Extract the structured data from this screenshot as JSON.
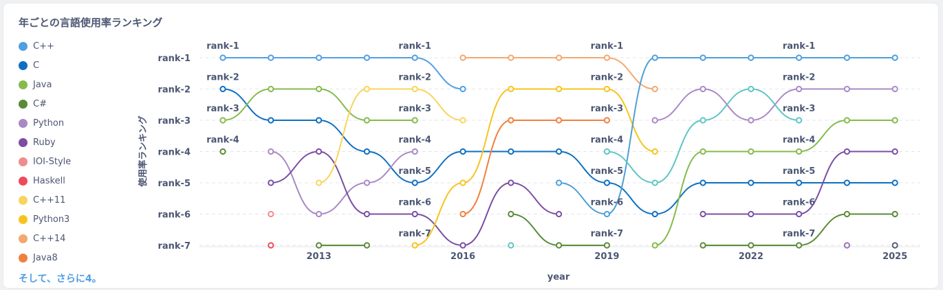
{
  "title": "年ごとの言語使用率ランキング",
  "more_label": "そして、さらに4。",
  "chart_data": {
    "type": "line",
    "title": "年ごとの言語使用率ランキング",
    "xlabel": "year",
    "ylabel": "使用率ランキング",
    "x": [
      2011,
      2012,
      2013,
      2014,
      2015,
      2016,
      2017,
      2018,
      2019,
      2020,
      2021,
      2022,
      2023,
      2024,
      2025
    ],
    "x_ticks": [
      2013,
      2016,
      2019,
      2022,
      2025
    ],
    "y_categories": [
      "rank-1",
      "rank-2",
      "rank-3",
      "rank-4",
      "rank-5",
      "rank-6",
      "rank-7"
    ],
    "legend_position": "left",
    "grid": true,
    "series": [
      {
        "name": "C++",
        "color": "#509ee3",
        "values": [
          1,
          1,
          1,
          1,
          1,
          2,
          null,
          null,
          null,
          null,
          null,
          null,
          null,
          null,
          null
        ]
      },
      {
        "name": "C",
        "color": "#0d6fc2",
        "values": [
          2,
          3,
          3,
          4,
          5,
          4,
          4,
          4,
          5,
          6,
          5,
          5,
          5,
          5,
          5
        ]
      },
      {
        "name": "Java",
        "color": "#84bb4c",
        "values": [
          3,
          2,
          2,
          3,
          3,
          null,
          null,
          null,
          null,
          7,
          4,
          4,
          4,
          3,
          3
        ]
      },
      {
        "name": "C#",
        "color": "#5a8a37",
        "values": [
          4,
          null,
          7,
          7,
          null,
          null,
          6,
          7,
          7,
          null,
          7,
          7,
          7,
          6,
          6
        ]
      },
      {
        "name": "Python",
        "color": "#a989c5",
        "values": [
          null,
          4,
          6,
          5,
          4,
          null,
          null,
          null,
          null,
          3,
          2,
          3,
          2,
          2,
          2
        ]
      },
      {
        "name": "Ruby",
        "color": "#7b4ea3",
        "values": [
          null,
          5,
          4,
          6,
          6,
          7,
          5,
          6,
          null,
          null,
          6,
          6,
          6,
          4,
          4
        ]
      },
      {
        "name": "IOI-Style",
        "color": "#ef8c8c",
        "values": [
          null,
          6,
          null,
          null,
          null,
          null,
          null,
          null,
          null,
          null,
          null,
          null,
          null,
          null,
          null
        ]
      },
      {
        "name": "Haskell",
        "color": "#ed4a5a",
        "values": [
          null,
          7,
          null,
          null,
          null,
          null,
          null,
          null,
          null,
          null,
          null,
          null,
          null,
          null,
          null
        ]
      },
      {
        "name": "C++11",
        "color": "#f9d45c",
        "values": [
          null,
          null,
          5,
          2,
          2,
          3,
          null,
          null,
          null,
          null,
          null,
          null,
          null,
          null,
          null
        ]
      },
      {
        "name": "Python3",
        "color": "#f7c41f",
        "values": [
          null,
          null,
          null,
          null,
          7,
          5,
          2,
          2,
          2,
          4,
          null,
          null,
          null,
          null,
          null
        ]
      },
      {
        "name": "C++14",
        "color": "#f2a86f",
        "values": [
          null,
          null,
          null,
          null,
          null,
          1,
          1,
          1,
          1,
          2,
          null,
          null,
          null,
          null,
          null
        ]
      },
      {
        "name": "Java8",
        "color": "#f0803d",
        "values": [
          null,
          null,
          null,
          null,
          null,
          6,
          3,
          3,
          3,
          null,
          null,
          null,
          null,
          null,
          null
        ]
      },
      {
        "name": "",
        "color": "#4e9fd8",
        "values": [
          null,
          null,
          null,
          null,
          null,
          null,
          null,
          5,
          6,
          1,
          1,
          1,
          1,
          1,
          1
        ]
      },
      {
        "name": "",
        "color": "#5ec5c5",
        "values": [
          null,
          null,
          null,
          null,
          null,
          null,
          7,
          null,
          4,
          5,
          3,
          2,
          3,
          null,
          null
        ]
      },
      {
        "name": "",
        "color": "#9a73b8",
        "values": [
          null,
          null,
          null,
          null,
          null,
          null,
          null,
          null,
          null,
          null,
          null,
          null,
          null,
          7,
          null
        ]
      },
      {
        "name": "",
        "color": "#565d7a",
        "values": [
          null,
          null,
          null,
          null,
          null,
          null,
          null,
          null,
          null,
          null,
          null,
          null,
          null,
          null,
          7
        ]
      }
    ],
    "label_columns": [
      2011,
      2015,
      2019,
      2023
    ]
  }
}
